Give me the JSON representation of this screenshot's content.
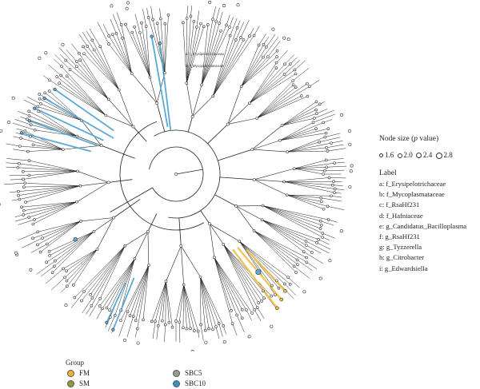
{
  "tree": {
    "overlay_labels": [
      "a: f_Erysipelotrichaceae",
      "b: f_Mycoplasmataceae"
    ]
  },
  "size_legend": {
    "title_pre": "Node size (",
    "title_p": "p",
    "title_post": " value)",
    "items": [
      "1.6",
      "2.0",
      "2.4",
      "2.8"
    ]
  },
  "label_legend": {
    "title": "Label",
    "items": [
      "a: f_Erysipelotrichaceae",
      "b: f_Mycoplasmataceae",
      "c: f_RsaHf231",
      "d: f_Hafniaceae",
      "e: g_Candidatus_Bacilloplasma",
      "f: g_RsaHf231",
      "g: g_Tyzzerella",
      "h: g_Citrobacter",
      "i: g_Edwardsiella"
    ]
  },
  "group_legend": {
    "title": "Group",
    "items": [
      {
        "label": "FM",
        "color": "#f2b233"
      },
      {
        "label": "SM",
        "color": "#8a9a3c"
      },
      {
        "label": "SBC5",
        "color": "#9a9a9a"
      },
      {
        "label": "SBC10",
        "color": "#3c8fc6"
      }
    ]
  },
  "colors": {
    "blue_highlight": "#5aa9d6",
    "orange_highlight": "#f2c14e",
    "branch": "#222222"
  }
}
